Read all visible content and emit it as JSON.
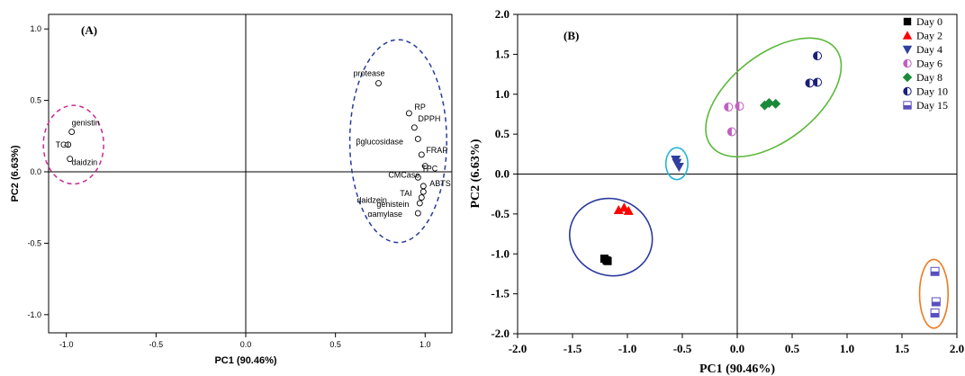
{
  "chart_data": [
    {
      "type": "scatter",
      "panel_label": "(A)",
      "xlabel": "PC1 (90.46%)",
      "ylabel": "PC2 (6.63%)",
      "xlim": [
        -1.1,
        1.1
      ],
      "ylim": [
        -1.1,
        1.1
      ],
      "xticks": [
        "-1.0",
        "-0.5",
        "0.0",
        "0.5",
        "1.0"
      ],
      "yticks": [
        "1.0",
        "0.5",
        "0.0",
        "-0.5",
        "-1.0"
      ],
      "grid": false,
      "points": [
        {
          "label": "genistin",
          "x": -0.97,
          "y": 0.28
        },
        {
          "label": "TGI",
          "x": -0.99,
          "y": 0.19
        },
        {
          "label": "daidzin",
          "x": -0.98,
          "y": 0.09
        },
        {
          "label": "protease",
          "x": 0.74,
          "y": 0.62
        },
        {
          "label": "RP",
          "x": 0.91,
          "y": 0.41
        },
        {
          "label": "DPPH",
          "x": 0.94,
          "y": 0.31
        },
        {
          "label": "βglucosidase",
          "x": 0.96,
          "y": 0.23
        },
        {
          "label": "FRAP",
          "x": 0.98,
          "y": 0.12
        },
        {
          "label": "TPC",
          "x": 1.0,
          "y": 0.04
        },
        {
          "label": "CMCase",
          "x": 0.96,
          "y": -0.04
        },
        {
          "label": "ABTS",
          "x": 0.99,
          "y": -0.1
        },
        {
          "label": "TAI",
          "x": 0.99,
          "y": -0.14
        },
        {
          "label": "daidzein",
          "x": 0.98,
          "y": -0.18
        },
        {
          "label": "genistein",
          "x": 0.97,
          "y": -0.22
        },
        {
          "label": "αamylase",
          "x": 0.96,
          "y": -0.29
        }
      ]
    },
    {
      "type": "scatter",
      "panel_label": "(B)",
      "xlabel": "PC1 (90.46%)",
      "ylabel": "PC2 (6.63%)",
      "xlim": [
        -2.0,
        2.0
      ],
      "ylim": [
        -2.0,
        2.0
      ],
      "xticks": [
        "-2.0",
        "-1.5",
        "-1.0",
        "-0.5",
        "0.0",
        "0.5",
        "1.0",
        "1.5",
        "2.0"
      ],
      "yticks": [
        "2.0",
        "1.5",
        "1.0",
        "0.5",
        "0.0",
        "-0.5",
        "-1.0",
        "-1.5",
        "-2.0"
      ],
      "grid": false,
      "legend_position": "top-right",
      "series": [
        {
          "name": "Day 0",
          "color": "#000000",
          "marker": "square",
          "points": [
            [
              -1.21,
              -1.06
            ],
            [
              -1.19,
              -1.08
            ],
            [
              -1.18,
              -1.09
            ]
          ]
        },
        {
          "name": "Day 2",
          "color": "#ff0000",
          "marker": "triangle-up",
          "points": [
            [
              -1.08,
              -0.45
            ],
            [
              -1.03,
              -0.42
            ],
            [
              -0.99,
              -0.46
            ]
          ]
        },
        {
          "name": "Day 4",
          "color": "#2e3f9e",
          "marker": "triangle-down",
          "points": [
            [
              -0.56,
              0.18
            ],
            [
              -0.55,
              0.14
            ],
            [
              -0.53,
              0.09
            ]
          ]
        },
        {
          "name": "Day 6",
          "color": "#c060c0",
          "marker": "half-circle",
          "points": [
            [
              -0.08,
              0.84
            ],
            [
              0.02,
              0.85
            ],
            [
              -0.05,
              0.53
            ]
          ]
        },
        {
          "name": "Day 8",
          "color": "#1a8a3a",
          "marker": "diamond",
          "points": [
            [
              0.25,
              0.86
            ],
            [
              0.29,
              0.89
            ],
            [
              0.35,
              0.88
            ]
          ]
        },
        {
          "name": "Day 10",
          "color": "#1a1f7a",
          "marker": "half-circle",
          "points": [
            [
              0.73,
              1.48
            ],
            [
              0.66,
              1.14
            ],
            [
              0.73,
              1.15
            ]
          ]
        },
        {
          "name": "Day 15",
          "color": "#5a4fbf",
          "marker": "half-square",
          "points": [
            [
              1.8,
              -1.22
            ],
            [
              1.81,
              -1.6
            ],
            [
              1.8,
              -1.74
            ]
          ]
        }
      ]
    }
  ]
}
